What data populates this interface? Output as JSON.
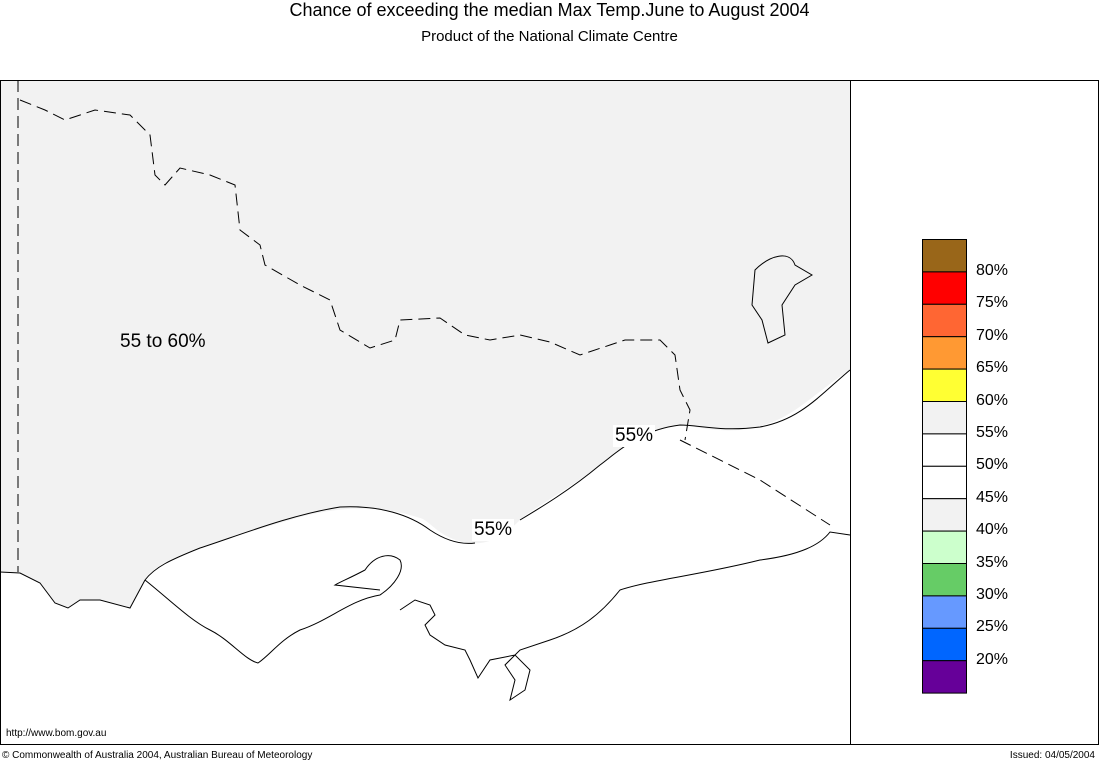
{
  "header": {
    "title": "Chance of exceeding the median Max Temp.June to August 2004",
    "subtitle": "Product of the National Climate Centre"
  },
  "map": {
    "region_label": "55 to 60%",
    "contour_labels": [
      "55%",
      "55%"
    ],
    "shading_color": "#f2f2f2"
  },
  "legend": {
    "colors": [
      "#996619",
      "#ff0000",
      "#ff6633",
      "#ff9933",
      "#ffff33",
      "#f2f2f2",
      "#ffffff",
      "#ffffff",
      "#f2f2f2",
      "#ccffcc",
      "#66cc66",
      "#6699ff",
      "#0066ff",
      "#660099"
    ],
    "labels": [
      "80%",
      "75%",
      "70%",
      "65%",
      "60%",
      "55%",
      "50%",
      "45%",
      "40%",
      "35%",
      "30%",
      "25%",
      "20%"
    ]
  },
  "footer": {
    "url": "http://www.bom.gov.au",
    "copyright": "© Commonwealth of Australia 2004, Australian Bureau of Meteorology",
    "issued": "Issued: 04/05/2004"
  }
}
